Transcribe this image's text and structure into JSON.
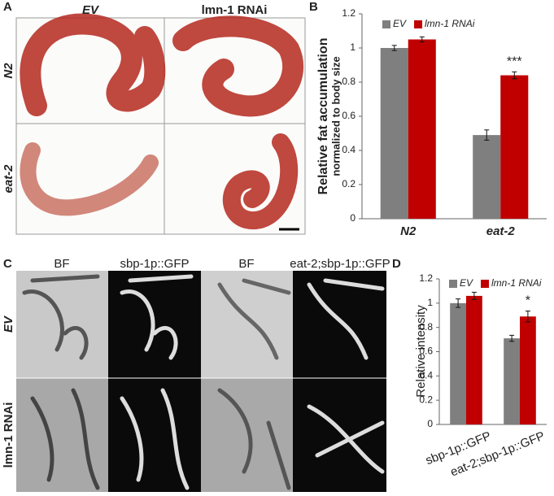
{
  "panels": {
    "A": {
      "letter": "A",
      "columns": [
        "EV",
        "lmn-1 RNAi"
      ],
      "rows": [
        "N2",
        "eat-2"
      ]
    },
    "B": {
      "letter": "B"
    },
    "C": {
      "letter": "C",
      "columns": [
        "BF",
        "sbp-1p::GFP",
        "BF",
        "eat-2;sbp-1p::GFP"
      ],
      "rows": [
        "EV",
        "lmn-1 RNAi"
      ]
    },
    "D": {
      "letter": "D"
    }
  },
  "chart_data": [
    {
      "type": "bar",
      "ylabel": [
        "Relative fat accumulation",
        "normalized to body size"
      ],
      "categories": [
        "N2",
        "eat-2"
      ],
      "series": [
        {
          "name": "EV",
          "color": "#7f7f7f",
          "values": [
            1.0,
            0.49
          ],
          "errors": [
            0.015,
            0.03
          ]
        },
        {
          "name": "lmn-1 RNAi",
          "color": "#c00000",
          "values": [
            1.05,
            0.84
          ],
          "errors": [
            0.015,
            0.02
          ]
        }
      ],
      "annotations": [
        "***"
      ],
      "ylim": [
        0,
        1.2
      ],
      "yticks": [
        0,
        0.2,
        0.4,
        0.6,
        0.8,
        1,
        1.2
      ]
    },
    {
      "type": "bar",
      "ylabel": [
        "Relative intensity"
      ],
      "categories": [
        "sbp-1p::GFP",
        "eat-2;sbp-1p::GFP"
      ],
      "series": [
        {
          "name": "EV",
          "color": "#7f7f7f",
          "values": [
            1.0,
            0.71
          ],
          "errors": [
            0.035,
            0.025
          ]
        },
        {
          "name": "lmn-1 RNAi",
          "color": "#c00000",
          "values": [
            1.06,
            0.89
          ],
          "errors": [
            0.03,
            0.045
          ]
        }
      ],
      "annotations": [
        "*"
      ],
      "ylim": [
        0,
        1.2
      ],
      "yticks": [
        0,
        0.2,
        0.4,
        0.6,
        0.8,
        1,
        1.2
      ]
    }
  ]
}
